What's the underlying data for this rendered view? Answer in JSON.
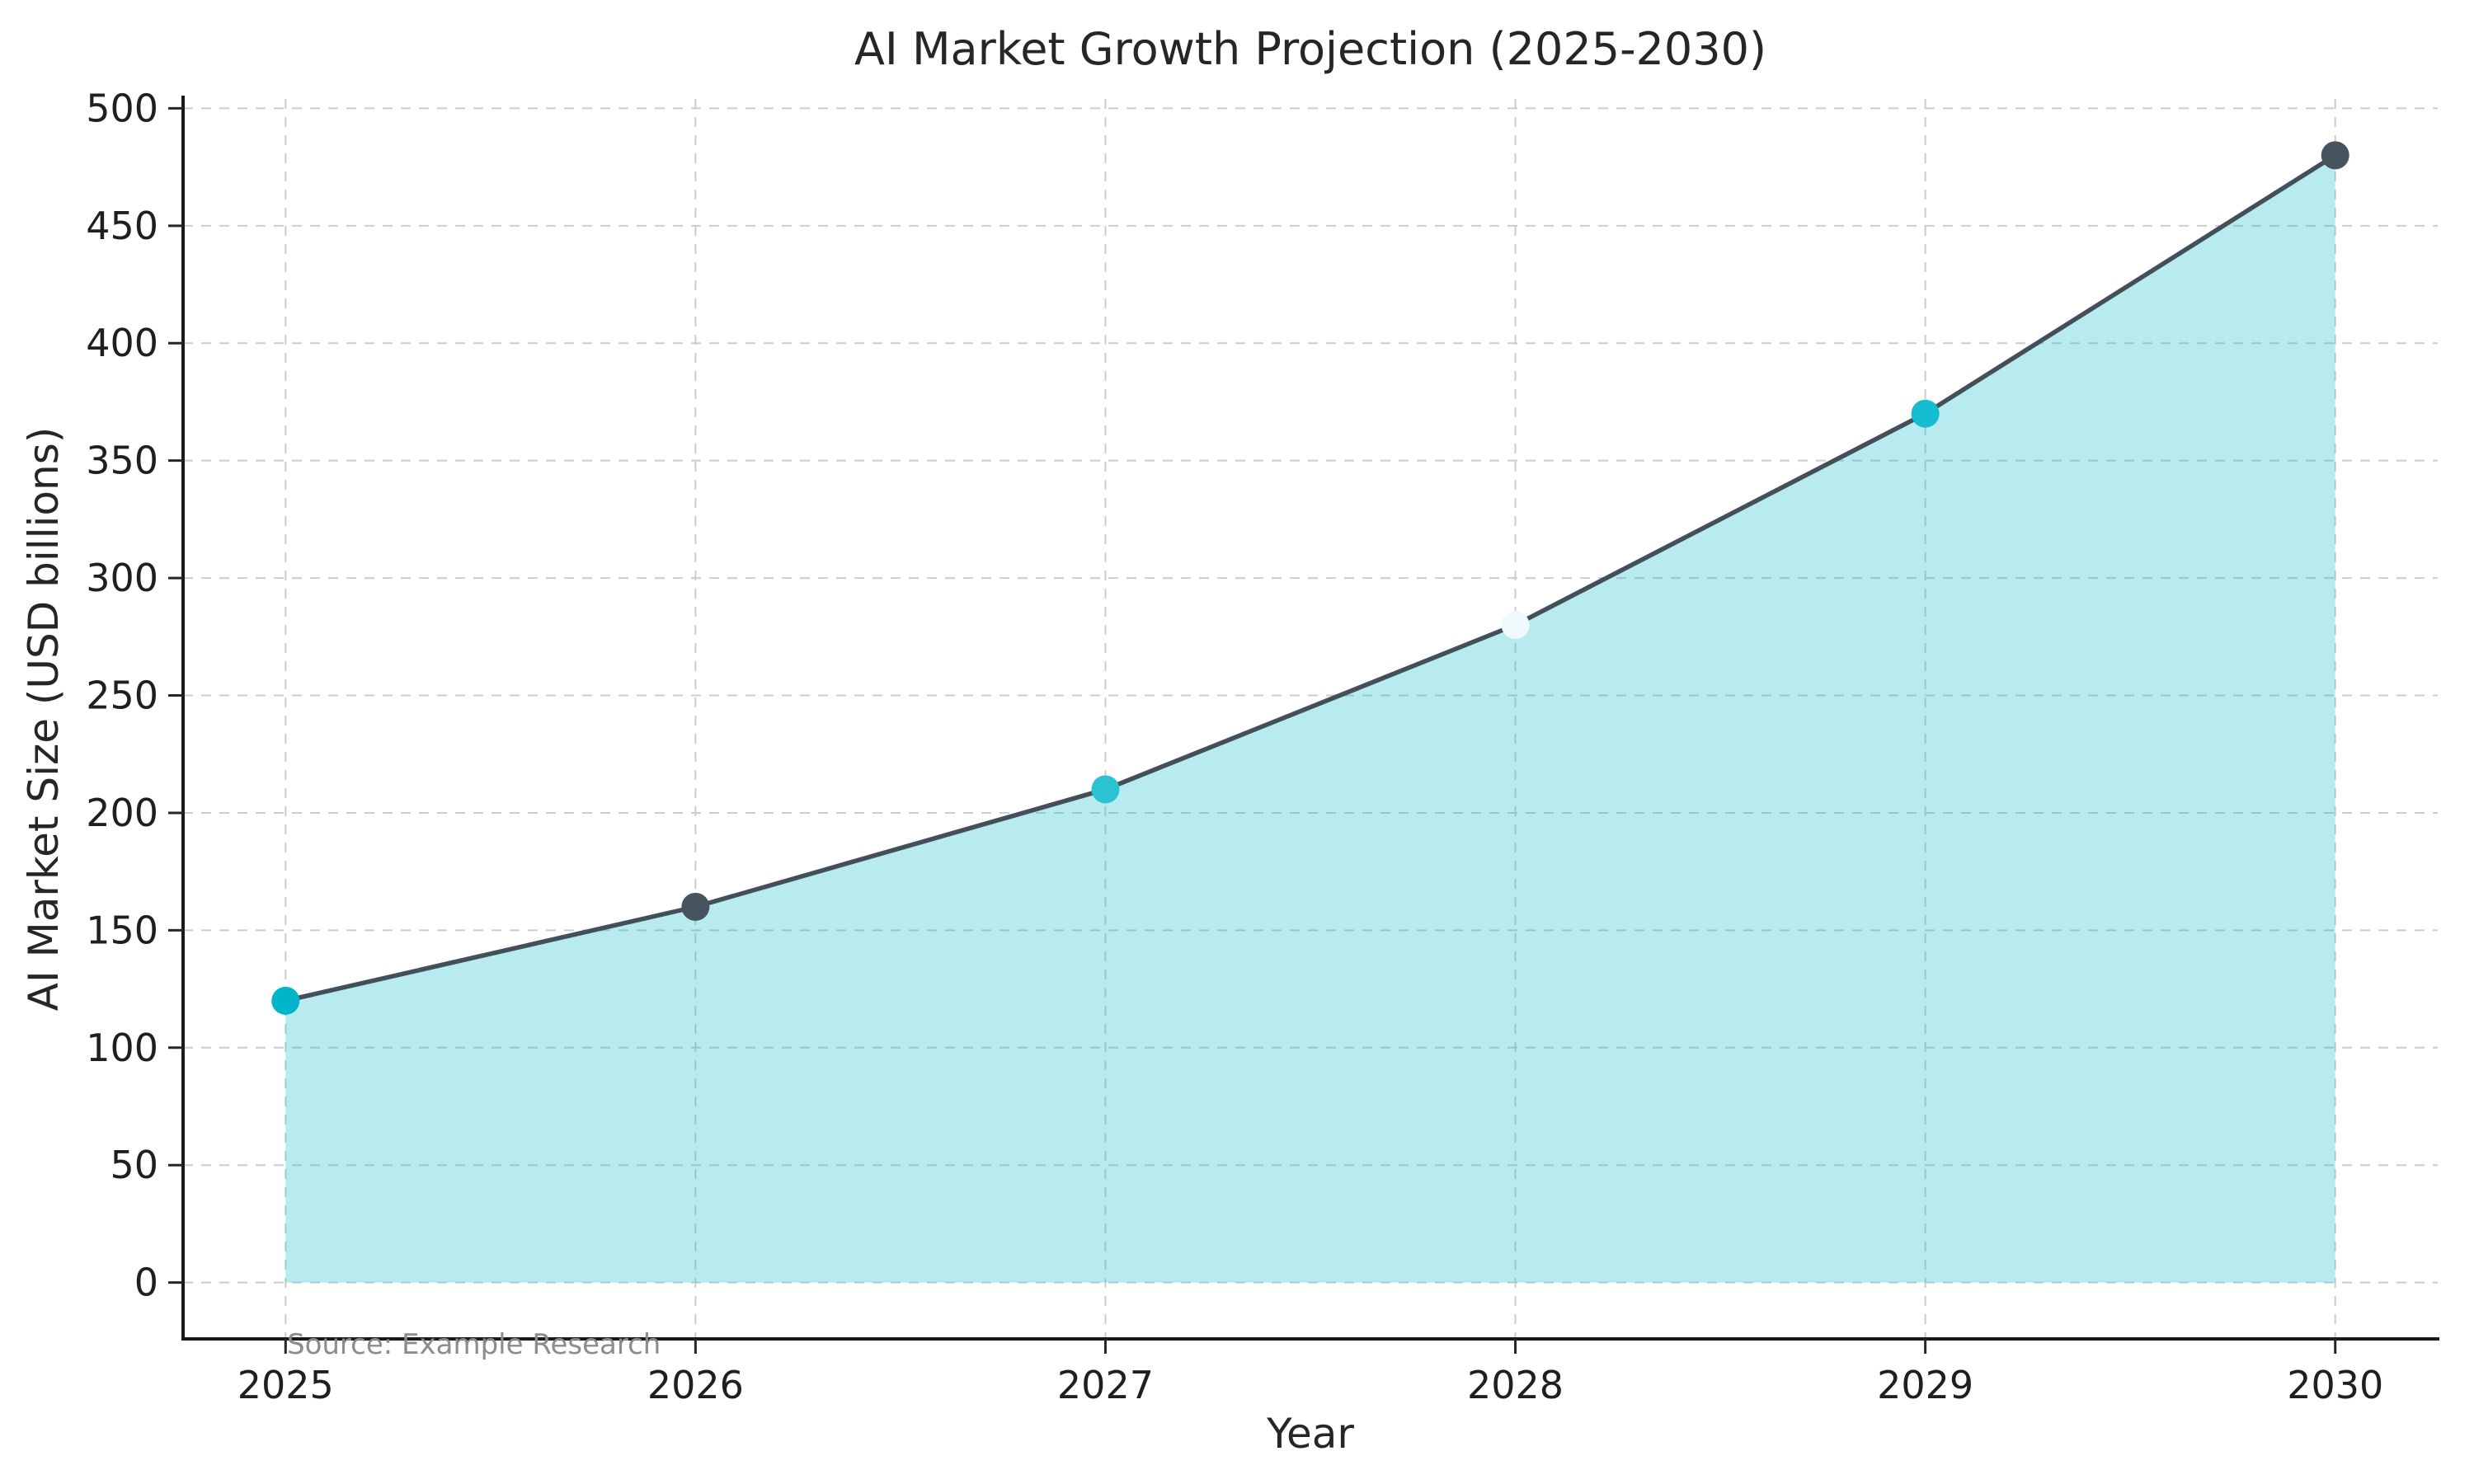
{
  "figure": {
    "title": "AI Market Growth Projection (2025-2030)",
    "xlabel": "Year",
    "ylabel": "AI Market Size (USD billions)",
    "source_note": "Source: Example Research",
    "background": "#ffffff"
  },
  "chart_data": {
    "type": "area",
    "title": "AI Market Growth Projection (2025-2030)",
    "xlabel": "Year",
    "ylabel": "AI Market Size (USD billions)",
    "x": [
      2025,
      2026,
      2027,
      2028,
      2029,
      2030
    ],
    "values": [
      120,
      160,
      210,
      280,
      370,
      480
    ],
    "xticks": [
      2025,
      2026,
      2027,
      2028,
      2029,
      2030
    ],
    "yticks": [
      0,
      50,
      100,
      150,
      200,
      250,
      300,
      350,
      400,
      450,
      500
    ],
    "xlim": [
      2024.75,
      2030.25
    ],
    "ylim": [
      -24,
      504
    ],
    "grid": true,
    "grid_style": "dashed",
    "legend_position": "none",
    "annotations": [
      {
        "text": "Source: Example Research",
        "anchor_x": 2025,
        "anchor_y_px_on_axis": true,
        "color": "#8c8c8c"
      }
    ],
    "style": {
      "line_color": "#43505a",
      "line_width": 5.5,
      "fill_color": "#22c0d0",
      "fill_opacity": 0.32,
      "marker_radius": 17,
      "point_colors": [
        "#00b5c9",
        "#47545e",
        "#2bc2d2",
        "#eefafc",
        "#15bdd0",
        "#47545e"
      ],
      "grid_color": "#cccccc",
      "spine_color": "#1a1a1a",
      "tick_color": "#262626",
      "text_color": "#262626",
      "source_text_color": "#8c8c8c"
    }
  }
}
